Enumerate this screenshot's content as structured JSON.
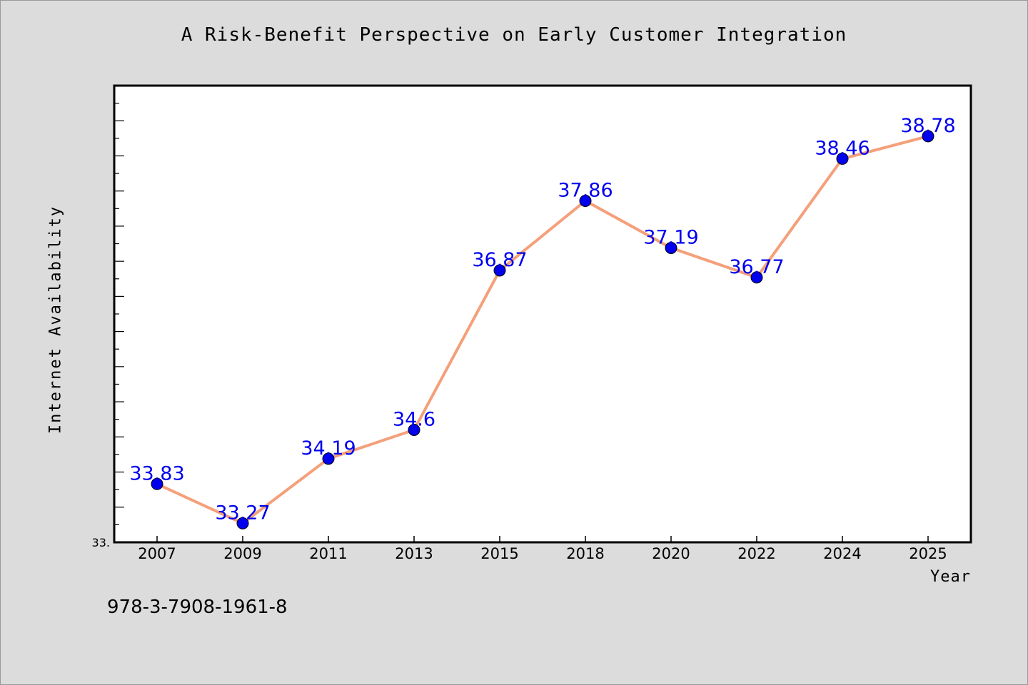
{
  "chart_data": {
    "type": "line",
    "title": "A Risk-Benefit Perspective on Early Customer Integration",
    "xlabel": "Year",
    "ylabel": "Internet Availability",
    "categories": [
      "2007",
      "2009",
      "2011",
      "2013",
      "2015",
      "2018",
      "2020",
      "2022",
      "2024",
      "2025"
    ],
    "series": [
      {
        "values": [
          33.83,
          33.27,
          34.19,
          34.6,
          36.87,
          37.86,
          37.19,
          36.77,
          38.46,
          38.78
        ],
        "data_labels": [
          "33.83",
          "33.27",
          "34.19",
          "34.6",
          "36.87",
          "37.86",
          "37.19",
          "36.77",
          "38.46",
          "38.78"
        ]
      }
    ],
    "y_tick_labels": [
      "33."
    ],
    "ylim": [
      33.0,
      39.5
    ],
    "grid": false,
    "colors": {
      "line": "#f4a07a",
      "marker": "#0000ee",
      "label": "#0000ee",
      "background": "#dcdcdc",
      "plot_bg": "#ffffff"
    }
  },
  "footer_text": "978-3-7908-1961-8"
}
